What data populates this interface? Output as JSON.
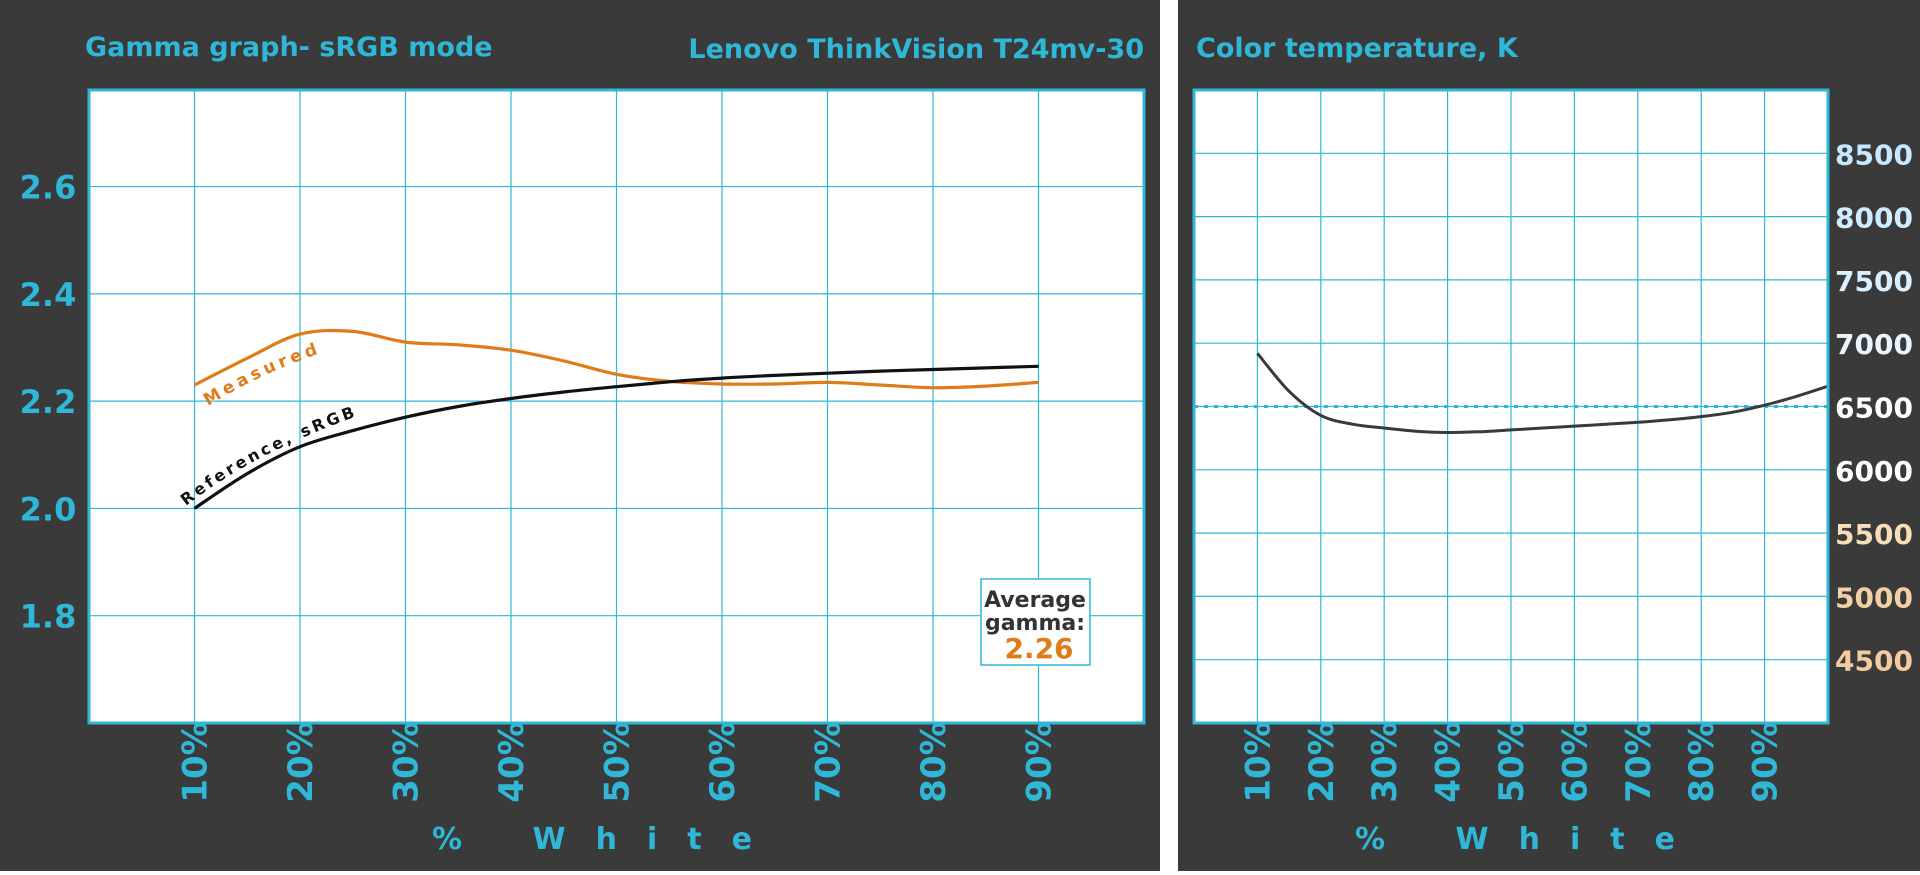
{
  "colors": {
    "panel_bg": "#3a3a3a",
    "plot_bg": "#ffffff",
    "grid": "#2fb7d8",
    "accent": "#2fb7d8",
    "measured": "#e07b1a",
    "reference": "#111111",
    "temp_line": "#3a3a3a",
    "temp_target": "#2fb7d8"
  },
  "chart_data": [
    {
      "type": "line",
      "title": "Gamma graph- sRGB mode",
      "subtitle": "Lenovo ThinkVision T24mv-30",
      "xlabel": "% White",
      "ylabel": "",
      "x_ticks": [
        "10%",
        "20%",
        "30%",
        "40%",
        "50%",
        "60%",
        "70%",
        "80%",
        "90%"
      ],
      "y_ticks": [
        "1.8",
        "2.0",
        "2.2",
        "2.4",
        "2.6"
      ],
      "xlim": [
        0,
        100
      ],
      "ylim": [
        1.6,
        2.78
      ],
      "grid": true,
      "series": [
        {
          "name": "Measured",
          "color_key": "measured",
          "points": [
            [
              10,
              2.23
            ],
            [
              15,
              2.28
            ],
            [
              20,
              2.325
            ],
            [
              25,
              2.33
            ],
            [
              30,
              2.31
            ],
            [
              35,
              2.305
            ],
            [
              40,
              2.295
            ],
            [
              45,
              2.275
            ],
            [
              50,
              2.25
            ],
            [
              55,
              2.237
            ],
            [
              60,
              2.232
            ],
            [
              65,
              2.232
            ],
            [
              70,
              2.235
            ],
            [
              75,
              2.23
            ],
            [
              80,
              2.225
            ],
            [
              85,
              2.228
            ],
            [
              90,
              2.235
            ]
          ]
        },
        {
          "name": "Reference, sRGB",
          "color_key": "reference",
          "points": [
            [
              10,
              2.0
            ],
            [
              15,
              2.065
            ],
            [
              20,
              2.115
            ],
            [
              25,
              2.145
            ],
            [
              30,
              2.17
            ],
            [
              35,
              2.19
            ],
            [
              40,
              2.205
            ],
            [
              45,
              2.217
            ],
            [
              50,
              2.227
            ],
            [
              55,
              2.236
            ],
            [
              60,
              2.243
            ],
            [
              65,
              2.248
            ],
            [
              70,
              2.252
            ],
            [
              75,
              2.256
            ],
            [
              80,
              2.259
            ],
            [
              85,
              2.262
            ],
            [
              90,
              2.265
            ]
          ]
        }
      ],
      "annotation": {
        "line1": "Average",
        "line2": "gamma:",
        "value": "2.26"
      }
    },
    {
      "type": "line",
      "title": "Color temperature, K",
      "xlabel": "% White",
      "ylabel": "",
      "x_ticks": [
        "10%",
        "20%",
        "30%",
        "40%",
        "50%",
        "60%",
        "70%",
        "80%",
        "90%"
      ],
      "y_ticks": [
        "4500",
        "5000",
        "5500",
        "6000",
        "6500",
        "7000",
        "7500",
        "8000",
        "8500"
      ],
      "y_tick_colors": [
        "#f3cba0",
        "#f3cfa8",
        "#f7ddb8",
        "#ffffff",
        "#ffffff",
        "#eaf6ff",
        "#d8f0ff",
        "#d0ecff",
        "#c8e8ff"
      ],
      "xlim": [
        0,
        100
      ],
      "ylim": [
        4000,
        9000
      ],
      "grid": true,
      "target": 6500,
      "series": [
        {
          "name": "",
          "color_key": "temp_line",
          "points": [
            [
              10,
              6920
            ],
            [
              15,
              6620
            ],
            [
              20,
              6430
            ],
            [
              25,
              6360
            ],
            [
              30,
              6330
            ],
            [
              35,
              6305
            ],
            [
              40,
              6295
            ],
            [
              45,
              6300
            ],
            [
              50,
              6315
            ],
            [
              55,
              6330
            ],
            [
              60,
              6345
            ],
            [
              65,
              6360
            ],
            [
              70,
              6375
            ],
            [
              75,
              6395
            ],
            [
              80,
              6420
            ],
            [
              85,
              6455
            ],
            [
              90,
              6510
            ],
            [
              95,
              6580
            ],
            [
              100,
              6660
            ]
          ]
        }
      ]
    }
  ]
}
